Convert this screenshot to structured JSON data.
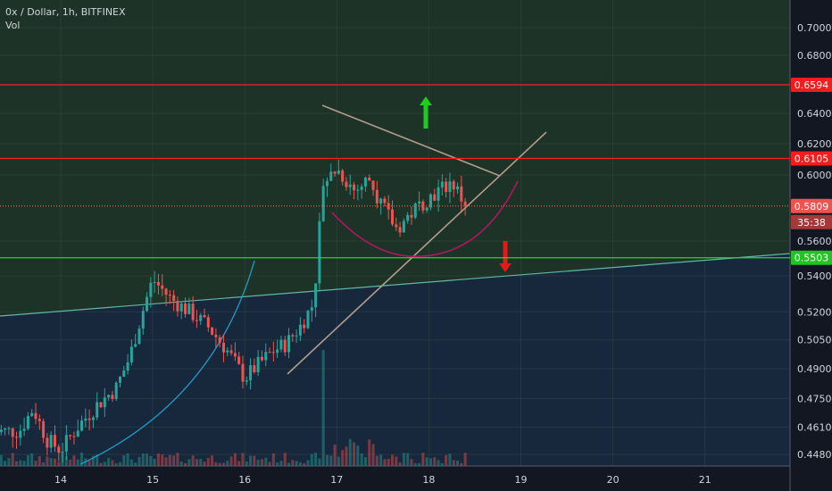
{
  "header": {
    "symbol_line": "0x / Dollar, 1h, BITFINEX",
    "vol_label": "Vol"
  },
  "colors": {
    "background": "#131722",
    "upper_zone": "#1e3327",
    "lower_zone": "#17283d",
    "bull": "#26a69a",
    "bear": "#ef5350",
    "level_red": "#ff1e1e",
    "level_green": "#2bd62b",
    "trend_tan": "#b39c8c",
    "curve_magenta": "#b0175f",
    "curve_cyan": "#1f9ec9",
    "support_teal": "#5fb8a6",
    "arrow_up": "#1ecb1e",
    "arrow_down": "#e21a1a"
  },
  "chart_data": {
    "type": "candlestick",
    "title": "0x / Dollar, 1h, BITFINEX",
    "x_ticks": [
      "14",
      "15",
      "16",
      "17",
      "18",
      "19",
      "20",
      "21"
    ],
    "y_ticks": [
      "0.7000",
      "0.6800",
      "0.6400",
      "0.6200",
      "0.6000",
      "0.5600",
      "0.5400",
      "0.5200",
      "0.5050",
      "0.4900",
      "0.4750",
      "0.4610",
      "0.4480"
    ],
    "y_scale": "log",
    "ylim": [
      0.441,
      0.722
    ],
    "grid": true,
    "levels": [
      {
        "label": "0.6594",
        "value": 0.6594,
        "color": "#ff1e1e",
        "style": "solid"
      },
      {
        "label": "0.6105",
        "value": 0.6105,
        "color": "#ff1e1e",
        "style": "solid"
      },
      {
        "label": "0.5503",
        "value": 0.5503,
        "color": "#2bd62b",
        "style": "solid"
      },
      {
        "label": "0.5809",
        "value": 0.5809,
        "color": "#ef5350",
        "style": "dotted",
        "sub_label": "35:38"
      }
    ],
    "approx_close_path": [
      {
        "day": 13.55,
        "close": 0.459
      },
      {
        "day": 13.7,
        "close": 0.47
      },
      {
        "day": 13.85,
        "close": 0.455
      },
      {
        "day": 14.0,
        "close": 0.45
      },
      {
        "day": 14.2,
        "close": 0.462
      },
      {
        "day": 14.4,
        "close": 0.472
      },
      {
        "day": 14.6,
        "close": 0.48
      },
      {
        "day": 14.75,
        "close": 0.496
      },
      {
        "day": 14.9,
        "close": 0.522
      },
      {
        "day": 15.0,
        "close": 0.538
      },
      {
        "day": 15.2,
        "close": 0.527
      },
      {
        "day": 15.4,
        "close": 0.52
      },
      {
        "day": 15.6,
        "close": 0.512
      },
      {
        "day": 15.8,
        "close": 0.5
      },
      {
        "day": 16.0,
        "close": 0.485
      },
      {
        "day": 16.1,
        "close": 0.49
      },
      {
        "day": 16.3,
        "close": 0.499
      },
      {
        "day": 16.45,
        "close": 0.503
      },
      {
        "day": 16.6,
        "close": 0.512
      },
      {
        "day": 16.75,
        "close": 0.525
      },
      {
        "day": 16.85,
        "close": 0.595
      },
      {
        "day": 17.0,
        "close": 0.604
      },
      {
        "day": 17.2,
        "close": 0.59
      },
      {
        "day": 17.35,
        "close": 0.598
      },
      {
        "day": 17.5,
        "close": 0.58
      },
      {
        "day": 17.65,
        "close": 0.567
      },
      {
        "day": 17.8,
        "close": 0.576
      },
      {
        "day": 17.95,
        "close": 0.584
      },
      {
        "day": 18.1,
        "close": 0.59
      },
      {
        "day": 18.25,
        "close": 0.596
      },
      {
        "day": 18.4,
        "close": 0.5809
      }
    ]
  }
}
